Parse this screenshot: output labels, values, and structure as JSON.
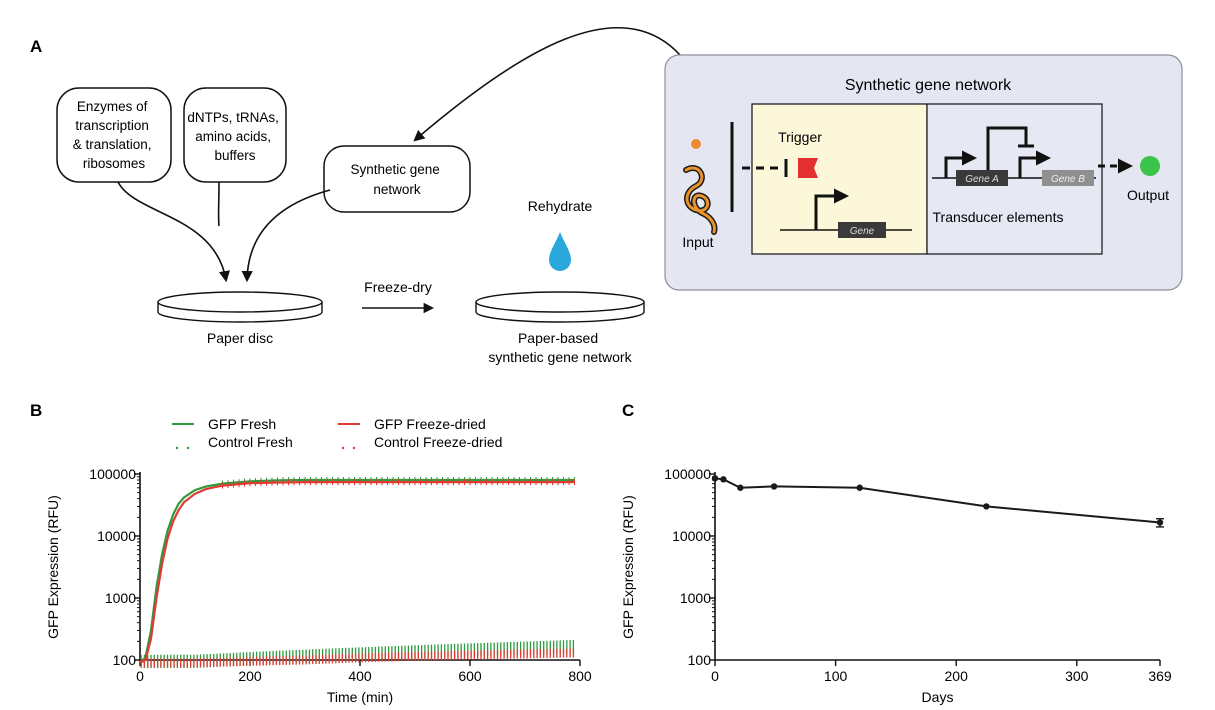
{
  "panel_labels": {
    "a": "A",
    "b": "B",
    "c": "C"
  },
  "panel_a": {
    "bubble_enzymes": [
      "Enzymes of",
      "transcription",
      "& translation,",
      "ribosomes"
    ],
    "bubble_reagents": [
      "dNTPs, tRNAs,",
      "amino acids,",
      "buffers"
    ],
    "bubble_network": [
      "Synthetic gene",
      "network"
    ],
    "paper_disc_label": "Paper disc",
    "freeze_dry_label": "Freeze-dry",
    "rehydrate_label": "Rehydrate",
    "paper_network_label": [
      "Paper-based",
      "synthetic gene network"
    ],
    "network_box": {
      "title": "Synthetic gene network",
      "trigger_label": "Trigger",
      "gene_label": "Gene",
      "gene_a_label": "Gene A",
      "gene_b_label": "Gene B",
      "transducer_label": "Transducer elements",
      "input_label": "Input",
      "output_label": "Output"
    },
    "colors": {
      "box_bg": "#e4e6f2",
      "left_inner": "#fbf7d8",
      "right_inner": "#e6e8f4",
      "droplet": "#2aa8dc",
      "output": "#3cc34a",
      "input_dot": "#ef8a2c",
      "trigger": "#e53030",
      "input_coil": "#e8932c"
    }
  },
  "chart_data": [
    {
      "type": "line",
      "panel": "B",
      "xlabel": "Time (min)",
      "ylabel": "GFP Expression (RFU)",
      "xlim": [
        0,
        800
      ],
      "ylim": [
        100,
        100000
      ],
      "yscale": "log",
      "xticks": [
        0,
        200,
        400,
        600,
        800
      ],
      "yticks": [
        100,
        1000,
        10000,
        100000
      ],
      "xtick_labels": [
        "0",
        "200",
        "400",
        "600",
        "800"
      ],
      "ytick_labels": [
        "100",
        "1000",
        "10000",
        "100000"
      ],
      "legend_placement": "top",
      "series": [
        {
          "name": "GFP Fresh",
          "color": "#2e9a3e",
          "style": "line",
          "x": [
            0,
            10,
            20,
            30,
            40,
            50,
            60,
            70,
            80,
            100,
            120,
            150,
            200,
            250,
            300,
            400,
            500,
            600,
            700,
            790
          ],
          "y": [
            90,
            110,
            300,
            1500,
            5000,
            12000,
            22000,
            33000,
            42000,
            55000,
            63000,
            70000,
            76000,
            79000,
            80000,
            80000,
            80000,
            80000,
            80000,
            80000
          ]
        },
        {
          "name": "GFP Freeze-dried",
          "color": "#e03a33",
          "style": "line",
          "x": [
            0,
            10,
            20,
            30,
            40,
            50,
            60,
            70,
            80,
            100,
            120,
            150,
            200,
            250,
            300,
            400,
            500,
            600,
            700,
            790
          ],
          "y": [
            90,
            100,
            220,
            1000,
            3500,
            9000,
            17000,
            26000,
            35000,
            48000,
            57000,
            65000,
            71000,
            73000,
            74000,
            74000,
            74000,
            74000,
            74000,
            74000
          ]
        },
        {
          "name": "Control Fresh",
          "color": "#2e9a3e",
          "style": "dotted",
          "x": [
            0,
            100,
            200,
            300,
            400,
            500,
            600,
            700,
            790
          ],
          "y": [
            95,
            95,
            105,
            115,
            125,
            135,
            145,
            155,
            165
          ]
        },
        {
          "name": "Control Freeze-dried",
          "color": "#e03a33",
          "style": "dotted",
          "x": [
            0,
            100,
            200,
            300,
            400,
            500,
            600,
            700,
            790
          ],
          "y": [
            90,
            90,
            95,
            100,
            108,
            115,
            120,
            125,
            130
          ]
        }
      ]
    },
    {
      "type": "line",
      "panel": "C",
      "xlabel": "Days",
      "ylabel": "GFP Expression (RFU)",
      "xlim": [
        0,
        369
      ],
      "ylim": [
        100,
        100000
      ],
      "yscale": "log",
      "xticks": [
        0,
        100,
        200,
        300,
        369
      ],
      "yticks": [
        100,
        1000,
        10000,
        100000
      ],
      "xtick_labels": [
        "0",
        "100",
        "200",
        "300",
        "369"
      ],
      "ytick_labels": [
        "100",
        "1000",
        "10000",
        "100000"
      ],
      "series": [
        {
          "color": "#1a1a1a",
          "x": [
            0,
            7,
            21,
            49,
            120,
            225,
            369
          ],
          "y": [
            85000,
            82000,
            60000,
            63000,
            60000,
            30000,
            16500
          ],
          "error": [
            0,
            0,
            0,
            0,
            0,
            0,
            2500
          ]
        }
      ]
    }
  ]
}
